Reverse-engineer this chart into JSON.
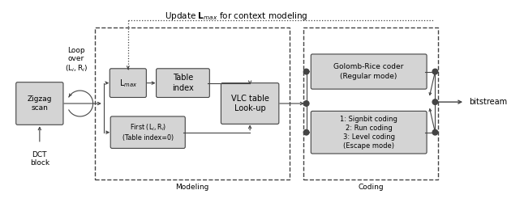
{
  "fig_width": 6.25,
  "fig_height": 2.56,
  "dpi": 100,
  "bg_color": "#ffffff",
  "box_fill": "#d4d4d4",
  "box_edge": "#444444",
  "line_color": "#444444",
  "font_color": "#000000",
  "title": "Update $\\mathbf{L}_{max}$ for context modeling",
  "zigzag_label": "Zigzag\nscan",
  "dct_label": "DCT\nblock",
  "loop_label": "Loop\nover\n$(\\mathrm{L}_i,\\mathrm{R}_i)$",
  "lmax_label": "$\\mathrm{L}_{max}$",
  "table_index_label": "Table\nindex",
  "first_label": "First $(\\mathrm{L}_i, \\mathrm{R}_i)$\n(Table index=0)",
  "vlc_label": "VLC table\nLook-up",
  "golomb_label": "Golomb-Rice coder\n(Regular mode)",
  "escape_label": "1: Signbit coding\n2: Run coding\n3: Level coding\n(Escape mode)",
  "modeling_label": "Modeling",
  "coding_label": "Coding",
  "bitstream_label": "bitstream"
}
